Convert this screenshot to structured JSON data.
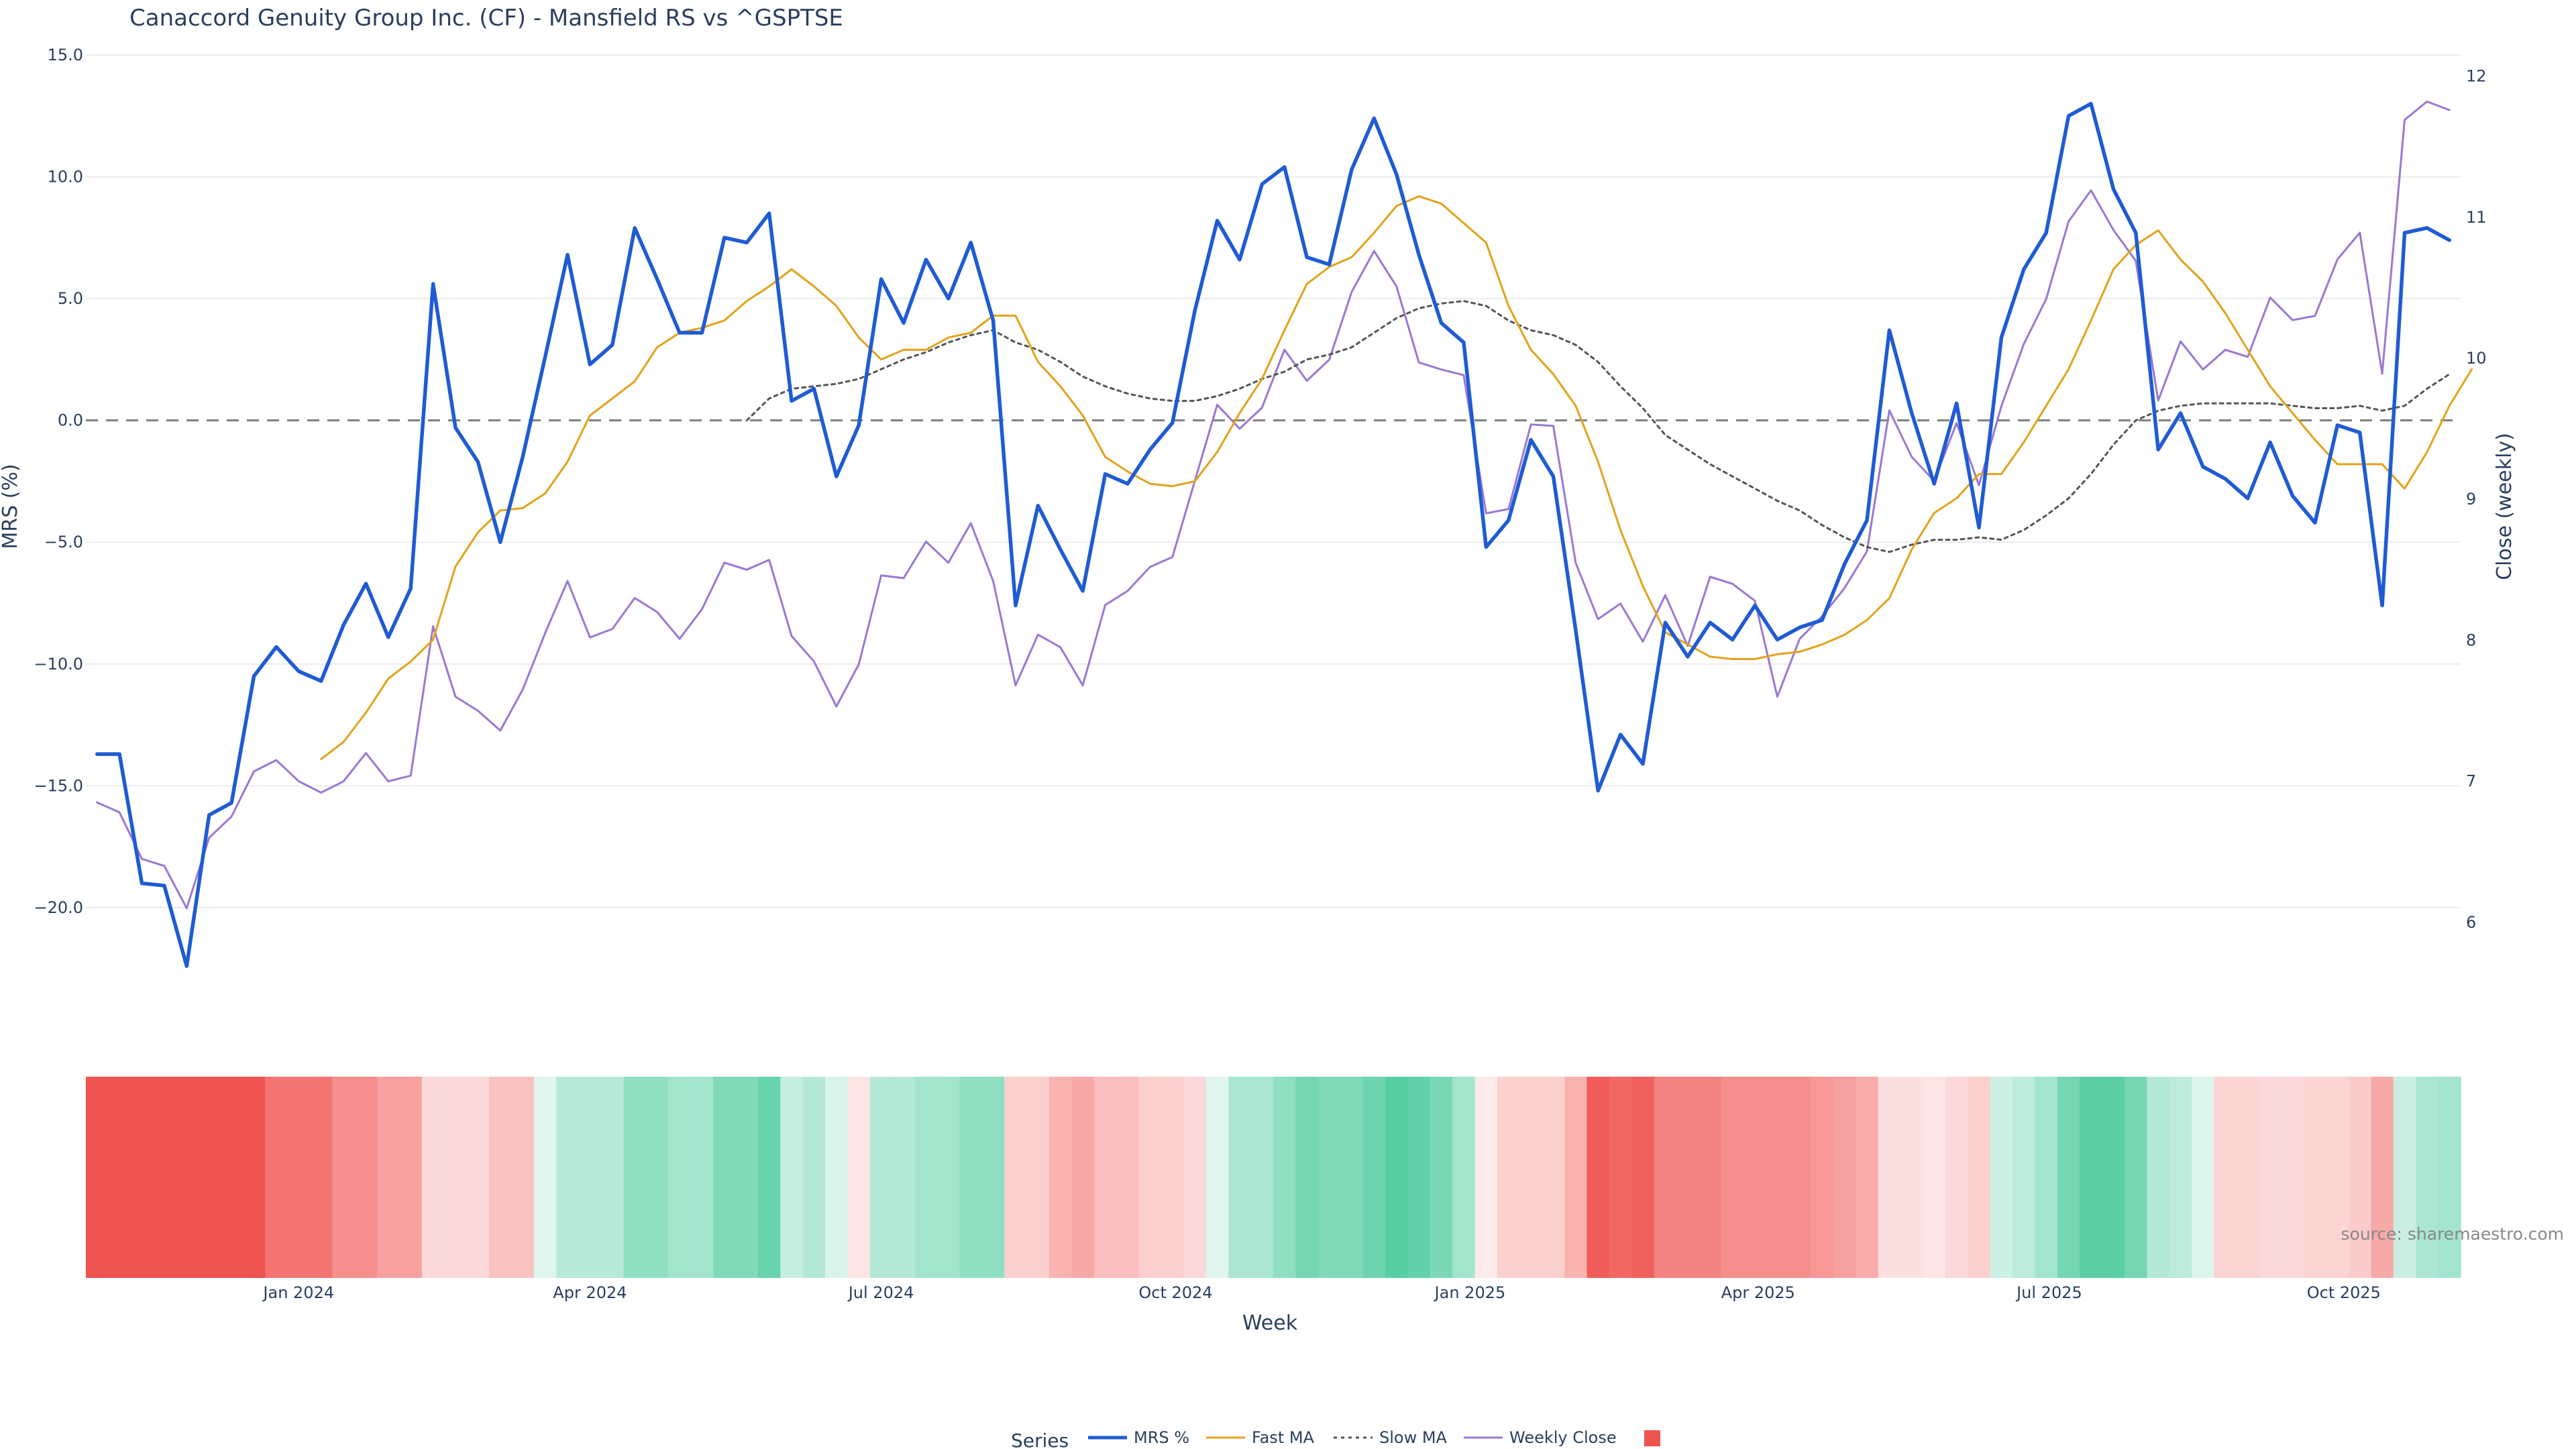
{
  "chart_data": {
    "type": "line",
    "title": "Canaccord Genuity Group Inc. (CF) - Mansfield RS vs ^GSPTSE",
    "xlabel": "Week",
    "ylabel_left": "MRS (%)",
    "ylabel_right": "Close (weekly)",
    "source": "source: sharemaestro.com",
    "x_start": "2023-10-30",
    "x_step_days": 7,
    "x_ticks": [
      {
        "label": "Jan 2024",
        "date": "2024-01-01"
      },
      {
        "label": "Apr 2024",
        "date": "2024-04-01"
      },
      {
        "label": "Jul 2024",
        "date": "2024-07-01"
      },
      {
        "label": "Oct 2024",
        "date": "2024-10-01"
      },
      {
        "label": "Jan 2025",
        "date": "2025-01-01"
      },
      {
        "label": "Apr 2025",
        "date": "2025-04-01"
      },
      {
        "label": "Jul 2025",
        "date": "2025-07-01"
      },
      {
        "label": "Oct 2025",
        "date": "2025-10-01"
      }
    ],
    "y_left": {
      "range": [
        -23.5,
        15.0
      ],
      "ticks": [
        15,
        10,
        5,
        0,
        -5,
        -10,
        -15,
        -20
      ],
      "tick_labels": [
        "15.0",
        "10.0",
        "5.0",
        "0.0",
        "−5.0",
        "−10.0",
        "−15.0",
        "−20.0"
      ]
    },
    "y_right": {
      "range": [
        5.5,
        12.15
      ],
      "ticks": [
        12,
        11,
        10,
        9,
        8,
        7,
        6
      ],
      "tick_labels": [
        "12",
        "11",
        "10",
        "9",
        "8",
        "7",
        "6"
      ]
    },
    "grid": true,
    "zero_line": true,
    "legend": {
      "title": "Series",
      "placement": "bottom-center"
    },
    "series": [
      {
        "name": "MRS %",
        "axis": "left",
        "color": "#1f5bd4",
        "style": "solid",
        "values": [
          -13.7,
          -13.7,
          -19,
          -19.1,
          -22.4,
          -16.2,
          -15.7,
          -10.5,
          -9.3,
          -10.3,
          -10.7,
          -8.4,
          -6.7,
          -8.9,
          -6.9,
          5.6,
          -0.3,
          -1.7,
          -5,
          -1.5,
          2.6,
          6.8,
          2.3,
          3.1,
          7.9,
          5.8,
          3.6,
          3.6,
          7.5,
          7.3,
          8.5,
          0.8,
          1.3,
          -2.3,
          -0.2,
          5.8,
          4,
          6.6,
          5,
          7.3,
          4.1,
          -7.6,
          -3.5,
          -5.3,
          -7,
          -2.2,
          -2.6,
          -1.2,
          -0.1,
          4.5,
          8.2,
          6.6,
          9.7,
          10.4,
          6.7,
          6.4,
          10.3,
          12.4,
          10.1,
          6.8,
          4,
          3.2,
          -5.2,
          -4.1,
          -0.8,
          -2.3,
          -8.6,
          -15.2,
          -12.9,
          -14.1,
          -8.3,
          -9.7,
          -8.3,
          -9,
          -7.6,
          -9,
          -8.5,
          -8.2,
          -5.9,
          -4.1,
          3.7,
          0.3,
          -2.6,
          0.7,
          -4.4,
          3.4,
          6.2,
          7.7,
          12.5,
          13,
          9.5,
          7.7,
          -1.2,
          0.3,
          -1.9,
          -2.4,
          -3.2,
          -0.9,
          -3.1,
          -4.2,
          -0.2,
          -0.5,
          -7.6,
          7.7,
          7.9,
          7.4
        ]
      },
      {
        "name": "Fast MA",
        "axis": "left",
        "color": "#e3a21a",
        "style": "solid",
        "start_index": 10,
        "values": [
          -13.9,
          -13.2,
          -12,
          -10.6,
          -9.9,
          -9,
          -6,
          -4.6,
          -3.7,
          -3.6,
          -3,
          -1.7,
          0.2,
          0.9,
          1.6,
          3,
          3.6,
          3.8,
          4.1,
          4.9,
          5.5,
          6.2,
          5.5,
          4.7,
          3.4,
          2.5,
          2.9,
          2.9,
          3.4,
          3.6,
          4.3,
          4.3,
          2.4,
          1.4,
          0.2,
          -1.5,
          -2.1,
          -2.6,
          -2.7,
          -2.5,
          -1.3,
          0.3,
          1.7,
          3.7,
          5.6,
          6.3,
          6.7,
          7.7,
          8.8,
          9.2,
          8.9,
          8.1,
          7.3,
          4.7,
          2.9,
          1.9,
          0.6,
          -1.7,
          -4.5,
          -6.8,
          -8.7,
          -9.2,
          -9.7,
          -9.8,
          -9.8,
          -9.6,
          -9.5,
          -9.2,
          -8.8,
          -8.2,
          -7.3,
          -5.3,
          -3.8,
          -3.2,
          -2.2,
          -2.2,
          -0.9,
          0.6,
          2.1,
          4.1,
          6.2,
          7.2,
          7.8,
          6.6,
          5.7,
          4.4,
          2.9,
          1.4,
          0.3,
          -0.8,
          -1.8,
          -1.8,
          -1.8,
          -2.8,
          -1.3,
          0.6,
          2.1
        ]
      },
      {
        "name": "Slow MA",
        "axis": "left",
        "color": "#555555",
        "style": "dotted",
        "start_index": 29,
        "values": [
          0,
          0.9,
          1.3,
          1.4,
          1.5,
          1.7,
          2.1,
          2.5,
          2.8,
          3.2,
          3.5,
          3.7,
          3.2,
          2.9,
          2.4,
          1.8,
          1.4,
          1.1,
          0.9,
          0.8,
          0.8,
          1,
          1.3,
          1.7,
          2,
          2.5,
          2.7,
          3,
          3.6,
          4.2,
          4.6,
          4.8,
          4.9,
          4.7,
          4.1,
          3.7,
          3.5,
          3.1,
          2.4,
          1.4,
          0.5,
          -0.6,
          -1.2,
          -1.8,
          -2.3,
          -2.8,
          -3.3,
          -3.7,
          -4.3,
          -4.8,
          -5.2,
          -5.4,
          -5.1,
          -4.9,
          -4.9,
          -4.8,
          -4.9,
          -4.5,
          -3.9,
          -3.2,
          -2.2,
          -1,
          0,
          0.4,
          0.6,
          0.7,
          0.7,
          0.7,
          0.7,
          0.6,
          0.5,
          0.5,
          0.6,
          0.4,
          0.6,
          1.3,
          1.9
        ]
      },
      {
        "name": "Weekly Close",
        "axis": "right",
        "color": "#9a78d2",
        "style": "solid",
        "values": [
          6.85,
          6.78,
          6.45,
          6.4,
          6.1,
          6.6,
          6.75,
          7.07,
          7.15,
          7.0,
          6.92,
          7.0,
          7.2,
          7.0,
          7.04,
          8.1,
          7.6,
          7.5,
          7.36,
          7.65,
          8.05,
          8.42,
          8.02,
          8.08,
          8.3,
          8.2,
          8.01,
          8.22,
          8.55,
          8.5,
          8.57,
          8.03,
          7.85,
          7.53,
          7.83,
          8.46,
          8.44,
          8.7,
          8.55,
          8.83,
          8.42,
          7.68,
          8.04,
          7.95,
          7.68,
          8.25,
          8.35,
          8.52,
          8.59,
          9.13,
          9.67,
          9.5,
          9.65,
          10.06,
          9.84,
          9.99,
          10.47,
          10.76,
          10.51,
          9.97,
          9.92,
          9.88,
          8.9,
          8.93,
          9.53,
          9.52,
          8.55,
          8.15,
          8.26,
          7.99,
          8.32,
          7.96,
          8.45,
          8.4,
          8.28,
          7.6,
          8.01,
          8.17,
          8.37,
          8.63,
          9.63,
          9.3,
          9.13,
          9.54,
          9.1,
          9.66,
          10.1,
          10.42,
          10.97,
          11.19,
          10.91,
          10.69,
          9.7,
          10.12,
          9.92,
          10.06,
          10.01,
          10.43,
          10.27,
          10.3,
          10.7,
          10.89,
          9.89,
          11.69,
          11.82,
          11.76
        ]
      }
    ],
    "heatmap_strip": {
      "color_negative": "#ef5350",
      "color_positive": "#4ecb9f",
      "values": [
        -1,
        -1,
        -1,
        -1,
        -1,
        -1,
        -1,
        -1,
        -0.8,
        -0.8,
        -0.8,
        -0.65,
        -0.65,
        -0.55,
        -0.55,
        -0.22,
        -0.22,
        -0.22,
        -0.35,
        -0.35,
        0.18,
        0.4,
        0.4,
        0.4,
        0.62,
        0.62,
        0.52,
        0.52,
        0.72,
        0.72,
        0.85,
        0.32,
        0.42,
        0.22,
        -0.15,
        0.42,
        0.42,
        0.52,
        0.52,
        0.62,
        0.62,
        -0.28,
        -0.28,
        -0.45,
        -0.5,
        -0.38,
        -0.38,
        -0.28,
        -0.28,
        -0.22,
        0.18,
        0.48,
        0.48,
        0.62,
        0.78,
        0.72,
        0.72,
        0.82,
        0.95,
        0.88,
        0.75,
        0.52,
        -0.12,
        -0.28,
        -0.28,
        -0.28,
        -0.45,
        -0.95,
        -0.88,
        -0.92,
        -0.72,
        -0.72,
        -0.72,
        -0.65,
        -0.65,
        -0.65,
        -0.65,
        -0.6,
        -0.55,
        -0.48,
        -0.18,
        -0.18,
        -0.15,
        -0.22,
        -0.28,
        0.28,
        0.38,
        0.52,
        0.78,
        0.92,
        0.92,
        0.78,
        0.42,
        0.38,
        0.2,
        -0.25,
        -0.25,
        -0.22,
        -0.22,
        -0.25,
        -0.25,
        -0.3,
        -0.5,
        0.3,
        0.48,
        0.52
      ]
    },
    "legend_swatch_color": "#ef5350"
  }
}
